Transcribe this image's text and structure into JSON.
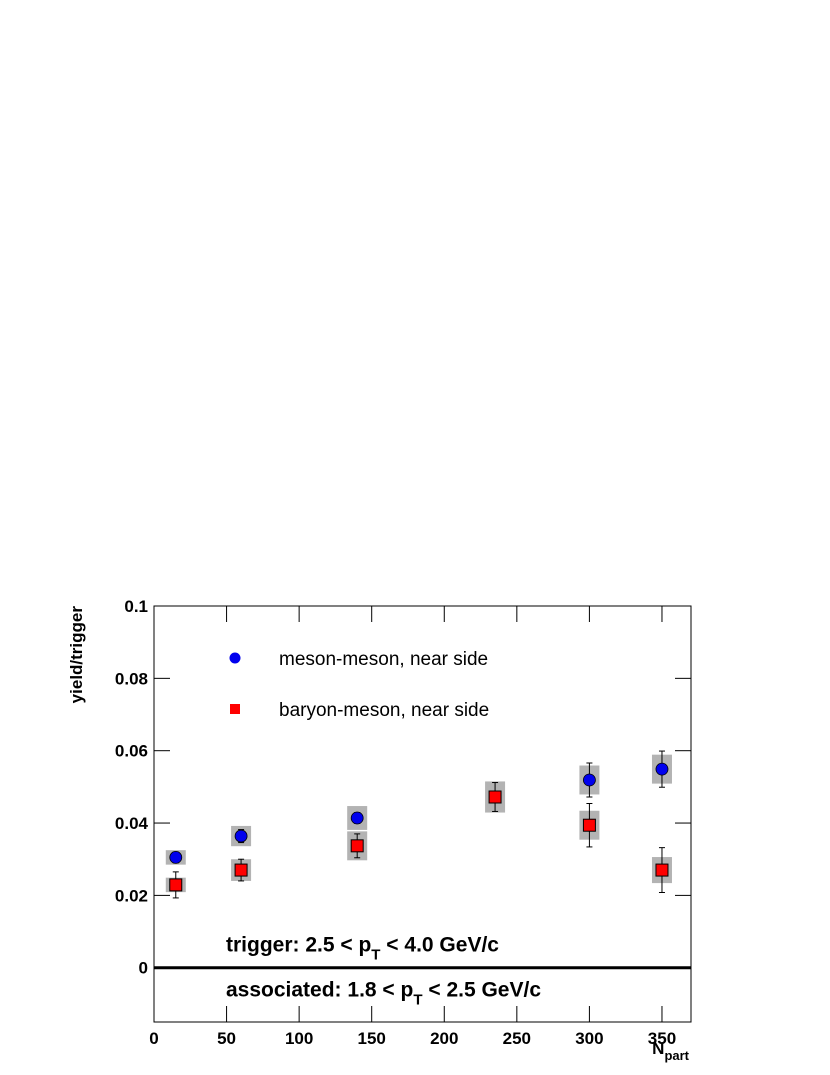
{
  "chart_data": {
    "type": "scatter",
    "ylabel": "yield/trigger",
    "xlabel": [
      "N",
      "part"
    ],
    "xlim": [
      0,
      370
    ],
    "ylim": [
      -0.015,
      0.1
    ],
    "xticks": [
      0,
      50,
      100,
      150,
      200,
      250,
      300,
      350
    ],
    "yticks": [
      0,
      0.02,
      0.04,
      0.06,
      0.08,
      0.1
    ],
    "zero_line": true,
    "legend": "upper left",
    "series": [
      {
        "name": "meson-meson, near side",
        "color": "#0000ee",
        "marker": "circle",
        "x": [
          15,
          60,
          140,
          300,
          350
        ],
        "values": [
          0.0305,
          0.0364,
          0.0414,
          0.0519,
          0.0549
        ],
        "errors": [
          0.0015,
          0.0018,
          0.0015,
          0.0047,
          0.005
        ],
        "sys_errors": [
          0.002,
          0.0028,
          0.0033,
          0.004,
          0.004
        ]
      },
      {
        "name": "baryon-meson, near side",
        "color": "#ff0000",
        "marker": "square",
        "x": [
          15,
          60,
          140,
          235,
          300,
          350
        ],
        "values": [
          0.0229,
          0.027,
          0.0337,
          0.0472,
          0.0394,
          0.027
        ],
        "errors": [
          0.0036,
          0.003,
          0.0033,
          0.004,
          0.006,
          0.0062
        ],
        "sys_errors": [
          0.002,
          0.003,
          0.004,
          0.0043,
          0.004,
          0.0036
        ]
      }
    ],
    "annotations": [
      {
        "parts": [
          "trigger: 2.5 < p",
          "T",
          " < 4.0 GeV/c"
        ]
      },
      {
        "parts": [
          "associated: 1.8 < p",
          "T",
          " < 2.5 GeV/c"
        ]
      }
    ]
  }
}
